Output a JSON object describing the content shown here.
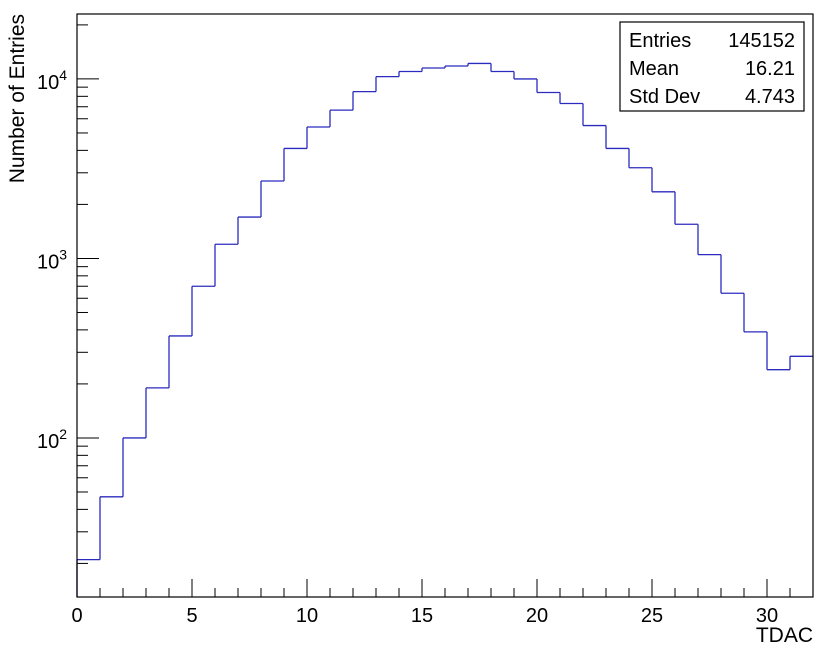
{
  "chart_data": {
    "type": "histogram",
    "xlabel": "TDAC",
    "ylabel": "Number of Entries",
    "xlim": [
      0,
      32
    ],
    "ylim": [
      13,
      23000
    ],
    "y_scale": "log",
    "bin_edges": [
      0,
      1,
      2,
      3,
      4,
      5,
      6,
      7,
      8,
      9,
      10,
      11,
      12,
      13,
      14,
      15,
      16,
      17,
      18,
      19,
      20,
      21,
      22,
      23,
      24,
      25,
      26,
      27,
      28,
      29,
      30,
      31,
      32
    ],
    "values": [
      21,
      47,
      100,
      190,
      370,
      700,
      1200,
      1700,
      2700,
      4100,
      5400,
      6700,
      8500,
      10300,
      11000,
      11500,
      11800,
      12200,
      11000,
      10000,
      8400,
      7300,
      5500,
      4100,
      3200,
      2350,
      1550,
      1050,
      640,
      390,
      240,
      285
    ],
    "x_ticks": [
      {
        "value": 0,
        "label": "0"
      },
      {
        "value": 5,
        "label": "5"
      },
      {
        "value": 10,
        "label": "10"
      },
      {
        "value": 15,
        "label": "15"
      },
      {
        "value": 20,
        "label": "20"
      },
      {
        "value": 25,
        "label": "25"
      },
      {
        "value": 30,
        "label": "30"
      }
    ],
    "y_ticks": [
      {
        "value": 100,
        "base": "10",
        "exp": "2"
      },
      {
        "value": 1000,
        "base": "10",
        "exp": "3"
      },
      {
        "value": 10000,
        "base": "10",
        "exp": "4"
      }
    ],
    "stats": [
      {
        "label": "Entries",
        "value": "145152"
      },
      {
        "label": "Mean",
        "value": "16.21"
      },
      {
        "label": "Std Dev",
        "value": "4.743"
      }
    ],
    "legend_position": "top-right",
    "grid": false,
    "line_color": "#2b2bbf"
  }
}
